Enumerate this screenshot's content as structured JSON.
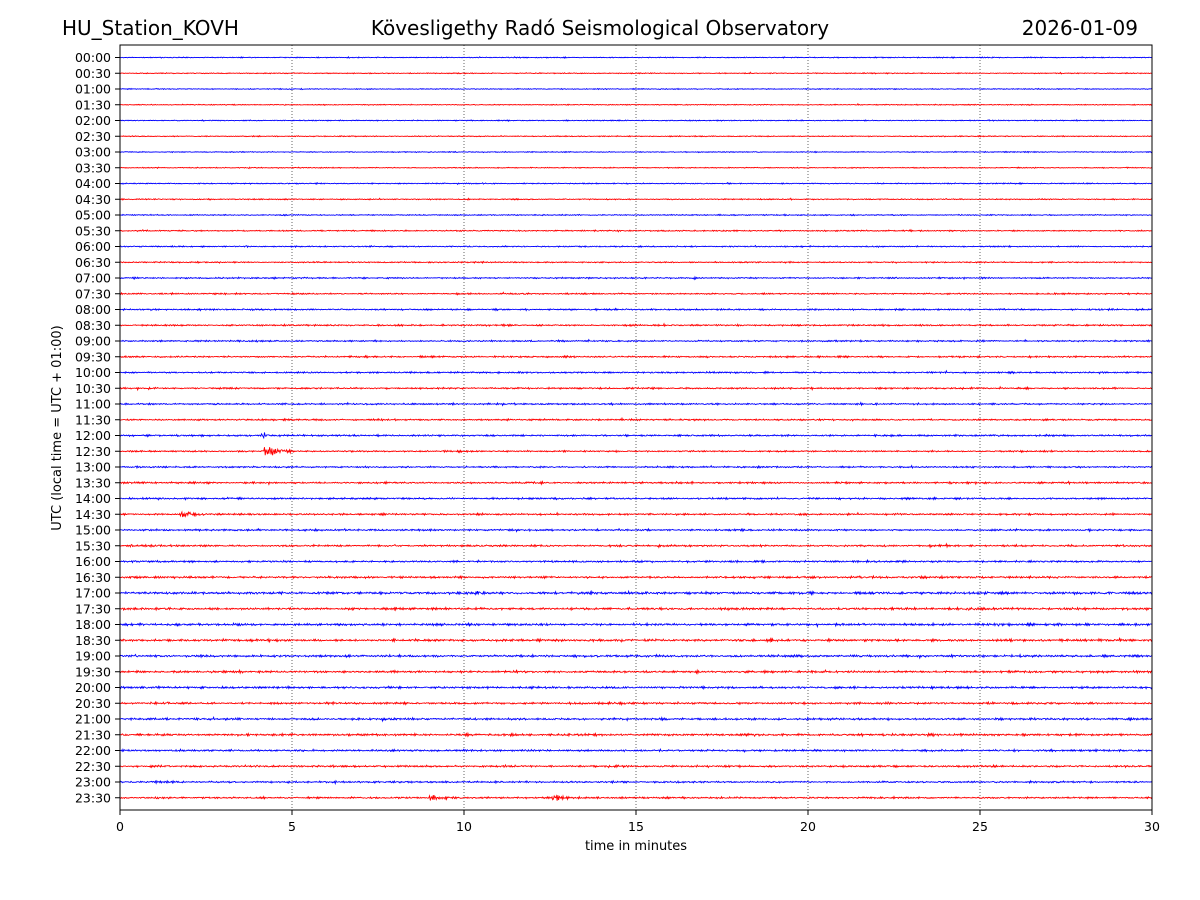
{
  "header": {
    "station": "HU_Station_KOVH",
    "title": "Kövesligethy Radó Seismological Observatory",
    "date": "2026-01-09"
  },
  "chart_data": {
    "type": "line",
    "title": "Kövesligethy Radó Seismological Observatory",
    "xlabel": "time in minutes",
    "ylabel": "UTC (local time = UTC + 01:00)",
    "xlim": [
      0,
      30
    ],
    "x_ticks": [
      0,
      5,
      10,
      15,
      20,
      25,
      30
    ],
    "vertical_grid": "dotted at 5-minute intervals",
    "row_labels": [
      "00:00",
      "00:30",
      "01:00",
      "01:30",
      "02:00",
      "02:30",
      "03:00",
      "03:30",
      "04:00",
      "04:30",
      "05:00",
      "05:30",
      "06:00",
      "06:30",
      "07:00",
      "07:30",
      "08:00",
      "08:30",
      "09:00",
      "09:30",
      "10:00",
      "10:30",
      "11:00",
      "11:30",
      "12:00",
      "12:30",
      "13:00",
      "13:30",
      "14:00",
      "14:30",
      "15:00",
      "15:30",
      "16:00",
      "16:30",
      "17:00",
      "17:30",
      "18:00",
      "18:30",
      "19:00",
      "19:30",
      "20:00",
      "20:30",
      "21:00",
      "21:30",
      "22:00",
      "22:30",
      "23:00",
      "23:30"
    ],
    "trace_colors": [
      "#0000ff",
      "#ff0000"
    ],
    "noise_level": [
      0.6,
      0.6,
      0.6,
      0.6,
      0.6,
      0.6,
      0.6,
      0.6,
      0.7,
      0.7,
      0.7,
      0.8,
      0.8,
      0.8,
      0.9,
      0.9,
      1.0,
      1.0,
      1.0,
      1.0,
      1.0,
      1.0,
      1.0,
      1.0,
      1.1,
      1.0,
      1.0,
      1.1,
      1.1,
      1.1,
      1.1,
      1.2,
      1.2,
      1.3,
      1.5,
      1.4,
      1.4,
      1.4,
      1.4,
      1.3,
      1.3,
      1.3,
      1.3,
      1.3,
      1.2,
      1.2,
      1.1,
      1.1
    ],
    "events": [
      {
        "row": "12:30",
        "minute": 4.2,
        "amplitude": 9,
        "duration_min": 0.8
      },
      {
        "row": "12:00",
        "minute": 4.15,
        "amplitude": 5,
        "duration_min": 0.2
      },
      {
        "row": "14:30",
        "minute": 1.8,
        "amplitude": 3,
        "duration_min": 1.0
      },
      {
        "row": "23:30",
        "minute": 9.0,
        "amplitude": 3,
        "duration_min": 0.8
      },
      {
        "row": "23:30",
        "minute": 12.6,
        "amplitude": 3.5,
        "duration_min": 0.6
      },
      {
        "row": "17:00",
        "minute": 10.3,
        "amplitude": 2.5,
        "duration_min": 0.4
      },
      {
        "row": "17:30",
        "minute": 24.6,
        "amplitude": 2.2,
        "duration_min": 0.4
      }
    ]
  }
}
